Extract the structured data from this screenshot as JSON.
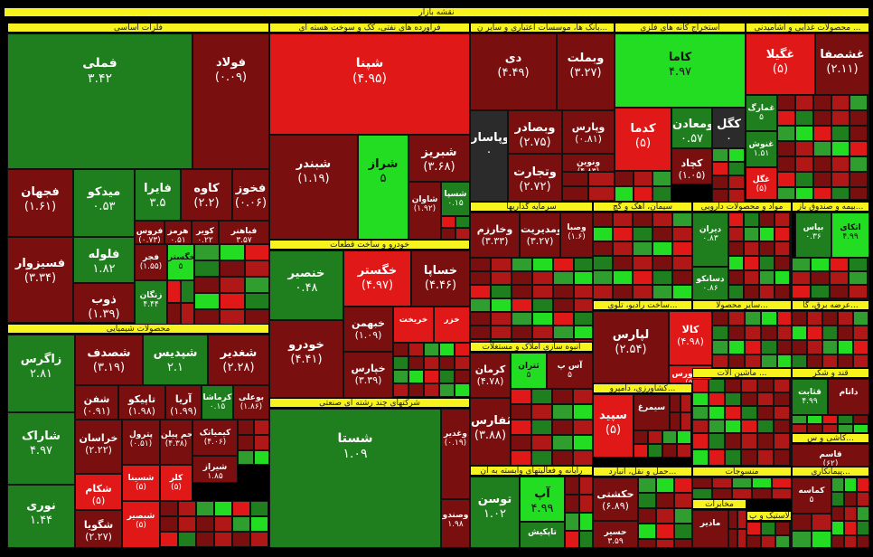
{
  "colors": {
    "deep_green": "#1f7f1f",
    "green": "#2f9e2f",
    "bright_green": "#22dd22",
    "lime": "#33ee33",
    "deep_red": "#7a0f0f",
    "red": "#b01818",
    "bright_red": "#e01818",
    "gray": "#2b2b2b",
    "header_yellow": "#f7f31f"
  },
  "title": "نقشه بازار",
  "sectors": [
    {
      "key": "metals",
      "label": "فلزات اساسی"
    },
    {
      "key": "refinery",
      "label": "فرآورده های نفتی، کک و سوخت هسته ای"
    },
    {
      "key": "banks",
      "label": "بانک ها، موسسات اعتباری و سایر ن..."
    },
    {
      "key": "mining",
      "label": "استخراج کانه های فلزی"
    },
    {
      "key": "food",
      "label": "محصولات غذایی و آشامیدنی ..."
    },
    {
      "key": "chemical",
      "label": "محصولات شیمیایی"
    },
    {
      "key": "auto",
      "label": "خودرو و ساخت قطعات"
    },
    {
      "key": "multi",
      "label": "شرکتهای چند رشته ای صنعتی"
    },
    {
      "key": "invest",
      "label": "سرمایه گذاریها"
    },
    {
      "key": "cement",
      "label": "سیمان، آهک و گچ"
    },
    {
      "key": "pharma",
      "label": "مواد و محصولات دارویی"
    },
    {
      "key": "insurance",
      "label": "بیمه و صندوق باز..."
    },
    {
      "key": "radio",
      "label": "ساخت رادیو، تلوی..."
    },
    {
      "key": "other_mining",
      "label": "سایر محصولا..."
    },
    {
      "key": "nonmetal",
      "label": "عرضه برق، گا..."
    },
    {
      "key": "realestate",
      "label": "انبوه سازی املاک و مستغلات"
    },
    {
      "key": "machinery",
      "label": "ماشین آلات ..."
    },
    {
      "key": "electric",
      "label": "فعالیت های جا..."
    },
    {
      "key": "sugar",
      "label": "قند و شکر"
    },
    {
      "key": "agri",
      "label": "کشاورزی، دامپرو..."
    },
    {
      "key": "tiles",
      "label": "کاشی و س..."
    },
    {
      "key": "transport",
      "label": "حمل و نقل، انبارد..."
    },
    {
      "key": "rail",
      "label": "رایانه و فعالیتهای وابسته به آن"
    },
    {
      "key": "textile",
      "label": "منسوجات"
    },
    {
      "key": "contracting",
      "label": "پیمانکاری..."
    },
    {
      "key": "comm",
      "label": "مخابرات"
    },
    {
      "key": "rubber",
      "label": "لاستیک و پ..."
    },
    {
      "key": "paper",
      "label": "محصولات کاغذی"
    }
  ],
  "tiles": [
    {
      "name": "فملی",
      "value": "۳.۴۲"
    },
    {
      "name": "فولاد",
      "value": "(۰.۰۹)"
    },
    {
      "name": "فجهان",
      "value": "(۱.۶۱)"
    },
    {
      "name": "میدکو",
      "value": "۰.۵۳"
    },
    {
      "name": "فایرا",
      "value": "۳.۵"
    },
    {
      "name": "کاوه",
      "value": "(۲.۲)"
    },
    {
      "name": "فخوز",
      "value": "(۰.۰۶)"
    },
    {
      "name": "فروس",
      "value": "(۰.۷۳)"
    },
    {
      "name": "هرمز",
      "value": "۰.۵۱"
    },
    {
      "name": "کویر",
      "value": "۰.۲۲"
    },
    {
      "name": "فباهنر",
      "value": "۳.۵۷"
    },
    {
      "name": "فلوله",
      "value": "۱.۸۲"
    },
    {
      "name": "فجر",
      "value": "(۱.۵۵)"
    },
    {
      "name": "خگستر",
      "value": "۵"
    },
    {
      "name": "فسیزوار",
      "value": "(۳.۳۴)"
    },
    {
      "name": "ذوب",
      "value": "(۱.۳۹)"
    },
    {
      "name": "زنگان",
      "value": "۴.۴۴"
    },
    {
      "name": "شپنا",
      "value": "(۴.۹۵)"
    },
    {
      "name": "شبندر",
      "value": "(۱.۱۹)"
    },
    {
      "name": "شراز",
      "value": "۵"
    },
    {
      "name": "شبریز",
      "value": "(۳.۶۸)"
    },
    {
      "name": "شاوان",
      "value": "(۱.۹۲)"
    },
    {
      "name": "شسپا",
      "value": "۰.۱۵"
    },
    {
      "name": "دی",
      "value": "(۴.۴۹)"
    },
    {
      "name": "وبملت",
      "value": "(۳.۲۷)"
    },
    {
      "name": "وپاسار",
      "value": "۰"
    },
    {
      "name": "وبصادر",
      "value": "(۲.۷۵)"
    },
    {
      "name": "وپارس",
      "value": "(۰.۸۱)"
    },
    {
      "name": "ونوین",
      "value": "(۴.۸۳)"
    },
    {
      "name": "وتجارت",
      "value": "(۲.۷۲)"
    },
    {
      "name": "کاما",
      "value": "۴.۹۷"
    },
    {
      "name": "کدما",
      "value": "(۵)"
    },
    {
      "name": "ومعادن",
      "value": "۰.۵۷"
    },
    {
      "name": "کگل",
      "value": "۰"
    },
    {
      "name": "کچاد",
      "value": "(۱.۰۵)"
    },
    {
      "name": "غگیلا",
      "value": "(۵)"
    },
    {
      "name": "غشصفا",
      "value": "(۲.۱۱)"
    },
    {
      "name": "غمارگ",
      "value": "۵"
    },
    {
      "name": "غنوش",
      "value": "۱.۵۱"
    },
    {
      "name": "غگل",
      "value": "(۵)"
    },
    {
      "name": "زاگرس",
      "value": "۲.۸۱"
    },
    {
      "name": "شصدف",
      "value": "(۳.۱۹)"
    },
    {
      "name": "شپدیس",
      "value": "۲.۱"
    },
    {
      "name": "شغدیر",
      "value": "(۲.۲۸)"
    },
    {
      "name": "شفن",
      "value": "(۰.۹۱)"
    },
    {
      "name": "تاپیکو",
      "value": "(۱.۹۸)"
    },
    {
      "name": "آریا",
      "value": "(۱.۹۹)"
    },
    {
      "name": "کرماشا",
      "value": "۰.۱۵"
    },
    {
      "name": "بوعلی",
      "value": "(۱.۸۶)"
    },
    {
      "name": "شاراک",
      "value": "۴.۹۷"
    },
    {
      "name": "خراسان",
      "value": "(۲.۲۲)"
    },
    {
      "name": "پترول",
      "value": "(۰.۵۱)"
    },
    {
      "name": "جم پیلن",
      "value": "(۴.۳۸)"
    },
    {
      "name": "کیمیاتک",
      "value": "(۴.۰۶)"
    },
    {
      "name": "نوری",
      "value": "۱.۴۴"
    },
    {
      "name": "شکام",
      "value": "(۵)"
    },
    {
      "name": "شسینا",
      "value": "(۵)"
    },
    {
      "name": "شگویا",
      "value": "(۲.۲۷)"
    },
    {
      "name": "شبصیر",
      "value": "(۵)"
    },
    {
      "name": "کلر",
      "value": "(۵)"
    },
    {
      "name": "شیراز",
      "value": "۱.۸۵"
    },
    {
      "name": "خنصیر",
      "value": "۰.۴۸"
    },
    {
      "name": "خگستر",
      "value": "(۴.۹۷)"
    },
    {
      "name": "خساپا",
      "value": "(۴.۴۶)"
    },
    {
      "name": "خودرو",
      "value": "(۴.۴۱)"
    },
    {
      "name": "خبهمن",
      "value": "(۱.۰۹)"
    },
    {
      "name": "خپارس",
      "value": "(۳.۳۹)"
    },
    {
      "name": "خریخت",
      "value": ""
    },
    {
      "name": "خزر",
      "value": ""
    },
    {
      "name": "شستا",
      "value": "۱.۰۹"
    },
    {
      "name": "وغدیر",
      "value": "(۰.۱۹)"
    },
    {
      "name": "وصندو",
      "value": "۱.۹۸"
    },
    {
      "name": "وخارزم",
      "value": "(۳.۳۳)"
    },
    {
      "name": "ومدیریت",
      "value": "(۳.۲۷)"
    },
    {
      "name": "وصبا",
      "value": "(۱.۶)"
    },
    {
      "name": "وسفاره",
      "value": "۱.۵۵"
    },
    {
      "name": "وبوعلی",
      "value": "۱.۷۵"
    },
    {
      "name": "کرمان",
      "value": "(۴.۷۸)"
    },
    {
      "name": "ثتران",
      "value": "۵"
    },
    {
      "name": "آس پ",
      "value": "۵"
    },
    {
      "name": "ثفارس",
      "value": "(۳.۸۸)"
    },
    {
      "name": "توسن",
      "value": "۱.۰۲"
    },
    {
      "name": "آپ",
      "value": "۴.۹۹"
    },
    {
      "name": "تاپکیش",
      "value": ""
    },
    {
      "name": "حکشتی",
      "value": "(۶.۸۹)"
    },
    {
      "name": "حسیر",
      "value": "۳.۵۹"
    },
    {
      "name": "سپید",
      "value": "(۵)"
    },
    {
      "name": "سیمرغ",
      "value": ""
    },
    {
      "name": "لپارس",
      "value": "(۲.۵۴)"
    },
    {
      "name": "کالا",
      "value": "(۴.۹۸)"
    },
    {
      "name": "فرابورس",
      "value": "(۵)"
    },
    {
      "name": "دیران",
      "value": "۰.۸۳"
    },
    {
      "name": "دسانکو",
      "value": "۰.۸۶"
    },
    {
      "name": "سیمان",
      "value": "۰.۹۹"
    },
    {
      "name": "بپاس",
      "value": "۰.۳۶"
    },
    {
      "name": "اتکای",
      "value": "۴.۹۹"
    },
    {
      "name": "داتام",
      "value": ""
    },
    {
      "name": "قثابت",
      "value": "۴.۹۹"
    },
    {
      "name": "قاسم",
      "value": "(۶۲)"
    },
    {
      "name": "کماسه",
      "value": "۵"
    },
    {
      "name": "مادیر",
      "value": ""
    },
    {
      "name": "اخابر",
      "value": ""
    },
    {
      "name": "چکاپا",
      "value": ""
    }
  ]
}
